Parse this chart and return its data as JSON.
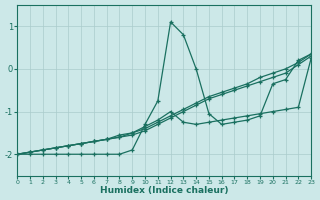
{
  "xlabel": "Humidex (Indice chaleur)",
  "background_color": "#cce8e8",
  "line_color": "#1a7060",
  "grid_color": "#aacccc",
  "xlim": [
    0,
    23
  ],
  "ylim": [
    -2.5,
    1.5
  ],
  "yticks": [
    -2,
    -1,
    0,
    1
  ],
  "xticks": [
    0,
    1,
    2,
    3,
    4,
    5,
    6,
    7,
    8,
    9,
    10,
    11,
    12,
    13,
    14,
    15,
    16,
    17,
    18,
    19,
    20,
    21,
    22,
    23
  ],
  "lines": [
    {
      "x": [
        0,
        1,
        2,
        3,
        4,
        5,
        6,
        7,
        8,
        9,
        10,
        11,
        12,
        13,
        14,
        15,
        16,
        17,
        18,
        19,
        20,
        21,
        22,
        23
      ],
      "y": [
        -2.0,
        -1.95,
        -1.9,
        -1.85,
        -1.8,
        -1.75,
        -1.7,
        -1.65,
        -1.6,
        -1.55,
        -1.45,
        -1.3,
        -1.15,
        -1.0,
        -0.85,
        -0.7,
        -0.6,
        -0.5,
        -0.4,
        -0.3,
        -0.2,
        -0.1,
        0.1,
        0.3
      ]
    },
    {
      "x": [
        0,
        1,
        2,
        3,
        4,
        5,
        6,
        7,
        8,
        9,
        10,
        11,
        12,
        13,
        14,
        15,
        16,
        17,
        18,
        19,
        20,
        21,
        22,
        23
      ],
      "y": [
        -2.0,
        -1.95,
        -1.9,
        -1.85,
        -1.8,
        -1.75,
        -1.7,
        -1.65,
        -1.55,
        -1.5,
        -1.4,
        -1.25,
        -1.1,
        -0.95,
        -0.8,
        -0.65,
        -0.55,
        -0.45,
        -0.35,
        -0.2,
        -0.1,
        0.0,
        0.15,
        0.35
      ]
    },
    {
      "x": [
        0,
        1,
        2,
        3,
        4,
        5,
        6,
        7,
        8,
        9,
        10,
        11,
        12,
        13,
        14,
        15,
        16,
        17,
        18,
        19,
        20,
        21,
        22,
        23
      ],
      "y": [
        -2.0,
        -1.95,
        -1.9,
        -1.85,
        -1.8,
        -1.75,
        -1.7,
        -1.65,
        -1.6,
        -1.5,
        -1.35,
        -1.2,
        -1.0,
        -1.25,
        -1.3,
        -1.25,
        -1.2,
        -1.15,
        -1.1,
        -1.05,
        -1.0,
        -0.95,
        -0.9,
        0.25
      ]
    },
    {
      "x": [
        0,
        1,
        2,
        3,
        4,
        5,
        6,
        7,
        8,
        9,
        10,
        11,
        12,
        13,
        14,
        15,
        16,
        17,
        18,
        19,
        20,
        21,
        22,
        23
      ],
      "y": [
        -2.0,
        -2.0,
        -2.0,
        -2.0,
        -2.0,
        -2.0,
        -2.0,
        -2.0,
        -2.0,
        -1.9,
        -1.3,
        -0.75,
        1.1,
        0.8,
        0.0,
        -1.05,
        -1.3,
        -1.25,
        -1.2,
        -1.1,
        -0.35,
        -0.25,
        0.2,
        0.35
      ]
    }
  ]
}
